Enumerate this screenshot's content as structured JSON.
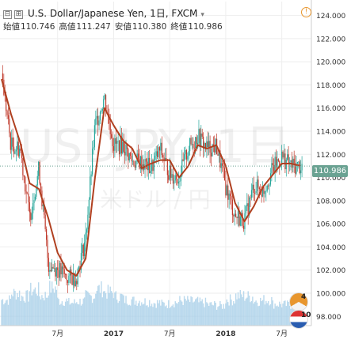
{
  "header": {
    "symbol": "U.S. Dollar/Japanese Yen, 1日, FXCM",
    "ohlc": [
      {
        "label": "始値",
        "value": "110.746"
      },
      {
        "label": "高値",
        "value": "111.247"
      },
      {
        "label": "安値",
        "value": "110.380"
      },
      {
        "label": "終値",
        "value": "110.986"
      }
    ],
    "collapse_icon": "⊟",
    "expand_icon": "⊞",
    "caret_icon": "▾",
    "info_icon": "!"
  },
  "watermark": {
    "main": "USDJPY, 1日",
    "sub": "米ドル / 円"
  },
  "price_tag": "110.986",
  "badges": {
    "events": "4",
    "flag": "10"
  },
  "colors": {
    "candle_up": "#26a69a",
    "candle_down": "#c0392b",
    "ma_line": "#b04020",
    "volume": "#a9cfe8",
    "price_line": "#6aa292",
    "grid": "#eeeeee"
  },
  "chart_data": {
    "type": "candlestick",
    "title": "U.S. Dollar/Japanese Yen, 1日, FXCM",
    "x_tick_labels": [
      "7月",
      "2017",
      "7月",
      "2018",
      "7月"
    ],
    "x_tick_dates": [
      "2016-07",
      "2017-01",
      "2017-07",
      "2018-01",
      "2018-07"
    ],
    "x_range": [
      "2016-01",
      "2018-10"
    ],
    "y_tick_labels": [
      "124.000",
      "122.000",
      "120.000",
      "118.000",
      "116.000",
      "114.000",
      "112.000",
      "110.000",
      "108.000",
      "106.000",
      "104.000",
      "102.000",
      "100.000",
      "98.000"
    ],
    "ylim": [
      97.2,
      125.2
    ],
    "last_close": 110.986,
    "close_path": [
      {
        "date": "2016-01",
        "close": 119.0
      },
      {
        "date": "2016-02",
        "close": 112.8
      },
      {
        "date": "2016-03",
        "close": 112.5
      },
      {
        "date": "2016-04",
        "close": 106.6
      },
      {
        "date": "2016-05",
        "close": 110.8
      },
      {
        "date": "2016-06",
        "close": 102.5
      },
      {
        "date": "2016-07",
        "close": 102.1
      },
      {
        "date": "2016-08",
        "close": 101.3
      },
      {
        "date": "2016-09",
        "close": 101.4
      },
      {
        "date": "2016-10",
        "close": 104.8
      },
      {
        "date": "2016-11",
        "close": 114.4
      },
      {
        "date": "2016-12",
        "close": 117.0
      },
      {
        "date": "2017-01",
        "close": 112.8
      },
      {
        "date": "2017-02",
        "close": 112.8
      },
      {
        "date": "2017-03",
        "close": 111.4
      },
      {
        "date": "2017-04",
        "close": 111.3
      },
      {
        "date": "2017-05",
        "close": 110.8
      },
      {
        "date": "2017-06",
        "close": 112.4
      },
      {
        "date": "2017-07",
        "close": 110.3
      },
      {
        "date": "2017-08",
        "close": 110.0
      },
      {
        "date": "2017-09",
        "close": 112.5
      },
      {
        "date": "2017-10",
        "close": 113.6
      },
      {
        "date": "2017-11",
        "close": 112.5
      },
      {
        "date": "2017-12",
        "close": 112.7
      },
      {
        "date": "2018-01",
        "close": 109.2
      },
      {
        "date": "2018-02",
        "close": 106.7
      },
      {
        "date": "2018-03",
        "close": 106.3
      },
      {
        "date": "2018-04",
        "close": 109.3
      },
      {
        "date": "2018-05",
        "close": 108.8
      },
      {
        "date": "2018-06",
        "close": 110.7
      },
      {
        "date": "2018-07",
        "close": 111.8
      },
      {
        "date": "2018-08",
        "close": 111.0
      },
      {
        "date": "2018-09",
        "close": 110.99
      }
    ],
    "moving_average": [
      {
        "date": "2016-01",
        "value": 118.5
      },
      {
        "date": "2016-02",
        "value": 115.5
      },
      {
        "date": "2016-03",
        "value": 113.0
      },
      {
        "date": "2016-04",
        "value": 109.5
      },
      {
        "date": "2016-05",
        "value": 109.0
      },
      {
        "date": "2016-06",
        "value": 106.5
      },
      {
        "date": "2016-07",
        "value": 103.5
      },
      {
        "date": "2016-08",
        "value": 102.0
      },
      {
        "date": "2016-09",
        "value": 101.5
      },
      {
        "date": "2016-10",
        "value": 103.0
      },
      {
        "date": "2016-11",
        "value": 110.0
      },
      {
        "date": "2016-12",
        "value": 116.0
      },
      {
        "date": "2017-01",
        "value": 114.5
      },
      {
        "date": "2017-02",
        "value": 113.2
      },
      {
        "date": "2017-03",
        "value": 112.5
      },
      {
        "date": "2017-04",
        "value": 110.8
      },
      {
        "date": "2017-05",
        "value": 111.2
      },
      {
        "date": "2017-06",
        "value": 111.5
      },
      {
        "date": "2017-07",
        "value": 111.5
      },
      {
        "date": "2017-08",
        "value": 110.0
      },
      {
        "date": "2017-09",
        "value": 111.0
      },
      {
        "date": "2017-10",
        "value": 112.8
      },
      {
        "date": "2017-11",
        "value": 112.5
      },
      {
        "date": "2017-12",
        "value": 112.8
      },
      {
        "date": "2018-01",
        "value": 111.0
      },
      {
        "date": "2018-02",
        "value": 107.8
      },
      {
        "date": "2018-03",
        "value": 106.2
      },
      {
        "date": "2018-04",
        "value": 107.5
      },
      {
        "date": "2018-05",
        "value": 109.2
      },
      {
        "date": "2018-06",
        "value": 110.2
      },
      {
        "date": "2018-07",
        "value": 111.2
      },
      {
        "date": "2018-08",
        "value": 111.2
      },
      {
        "date": "2018-09",
        "value": 111.0
      }
    ],
    "volume_relative": [
      0.62,
      0.78,
      0.7,
      0.85,
      0.72,
      0.9,
      0.6,
      0.55,
      0.58,
      0.7,
      0.88,
      0.8,
      0.7,
      0.62,
      0.6,
      0.58,
      0.55,
      0.52,
      0.56,
      0.6,
      0.58,
      0.55,
      0.5,
      0.48,
      0.62,
      0.72,
      0.7,
      0.6,
      0.62,
      0.52,
      0.5,
      0.48,
      0.45
    ]
  }
}
